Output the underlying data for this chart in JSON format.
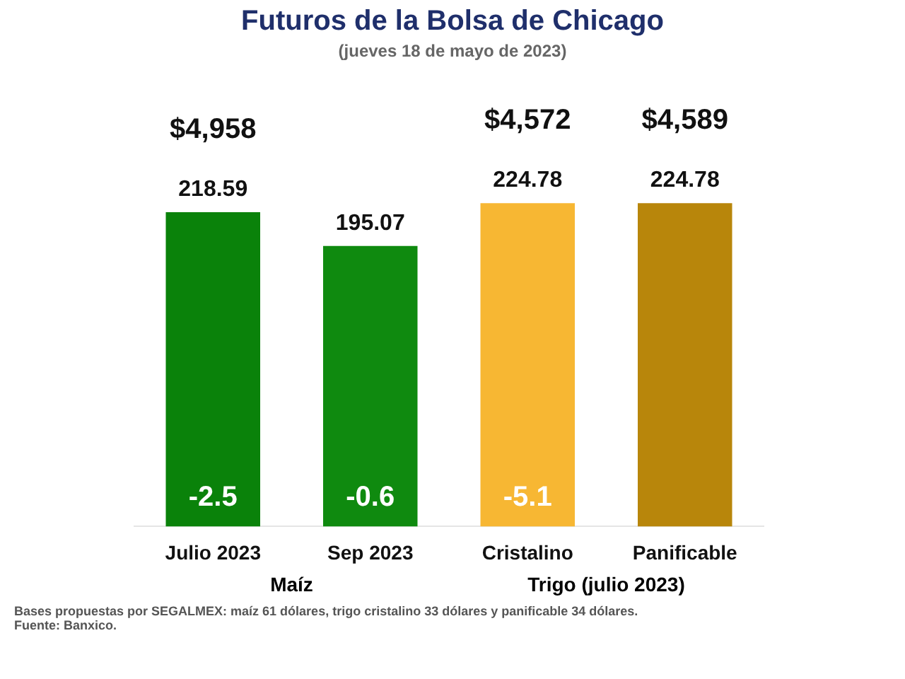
{
  "chart_data": {
    "type": "bar",
    "title": "Futuros de la Bolsa de Chicago",
    "subtitle": "(jueves 18 de mayo de 2023)",
    "categories": [
      "Julio 2023",
      "Sep 2023",
      "Cristalino",
      "Panificable"
    ],
    "values": [
      218.59,
      195.07,
      224.78,
      224.78
    ],
    "colors": [
      "#0a820a",
      "#0f8a0f",
      "#f7b733",
      "#b8860b"
    ],
    "data_labels": true,
    "tick_labels": "x",
    "grid": false,
    "legend": false,
    "annotations": [
      "$4,958",
      "$4,572",
      "$4,589",
      "-2.5",
      "-0.6",
      "-5.1",
      "Maíz",
      "Trigo (julio 2023)",
      "Bases propuestas por SEGALMEX: maíz 61 dólares, trigo cristalino 33 dólares y panificable 34 dólares.",
      "Fuente: Banxico."
    ]
  }
}
